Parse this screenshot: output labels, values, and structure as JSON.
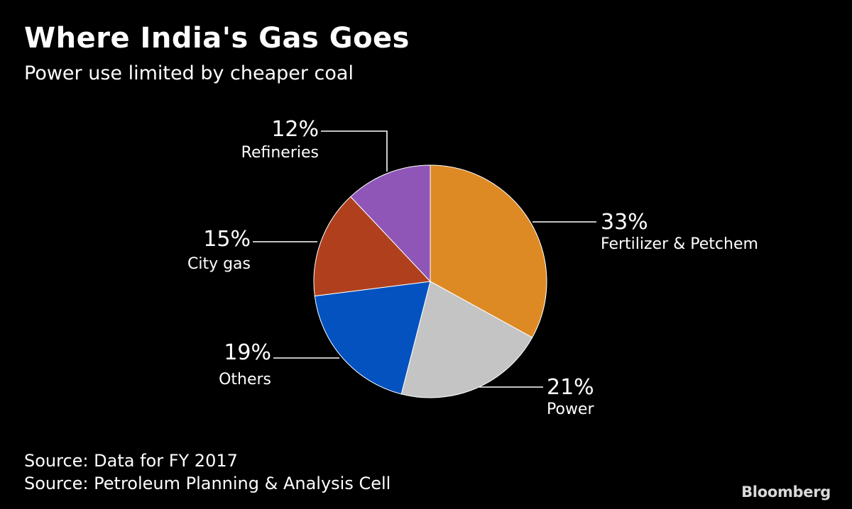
{
  "header": {
    "title": "Where India's Gas Goes",
    "subtitle": "Power use limited by cheaper coal"
  },
  "chart_data": {
    "type": "pie",
    "title": "Where India's Gas Goes",
    "subtitle": "Power use limited by cheaper coal",
    "slices": [
      {
        "label": "Fertilizer & Petchem",
        "value": 33,
        "value_label": "33%",
        "color": "#dd8a25"
      },
      {
        "label": "Power",
        "value": 21,
        "value_label": "21%",
        "color": "#c4c4c4"
      },
      {
        "label": "Others",
        "value": 19,
        "value_label": "19%",
        "color": "#0452c0"
      },
      {
        "label": "City gas",
        "value": 15,
        "value_label": "15%",
        "color": "#b0401d"
      },
      {
        "label": "Refineries",
        "value": 12,
        "value_label": "12%",
        "color": "#8f56b8"
      }
    ],
    "start": "12 o'clock",
    "direction": "clockwise",
    "legend": "none"
  },
  "footer": {
    "source_1": "Source: Data for FY 2017",
    "source_2": "Source: Petroleum Planning & Analysis Cell",
    "brand": "Bloomberg"
  }
}
